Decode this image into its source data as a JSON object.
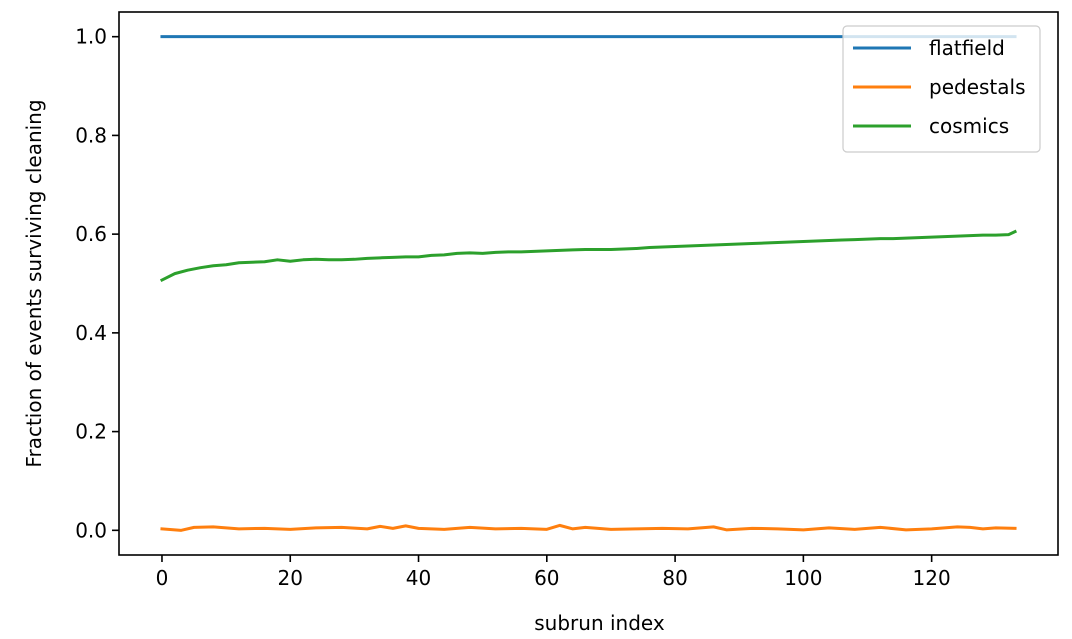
{
  "chart_data": {
    "type": "line",
    "title": "",
    "xlabel": "subrun index",
    "ylabel": "Fraction of events surviving cleaning",
    "xlim": [
      -6.7,
      139.7
    ],
    "ylim": [
      -0.05,
      1.05
    ],
    "xticks": [
      0,
      20,
      40,
      60,
      80,
      100,
      120
    ],
    "yticks": [
      0.0,
      0.2,
      0.4,
      0.6,
      0.8,
      1.0
    ],
    "xtick_labels": [
      "0",
      "20",
      "40",
      "60",
      "80",
      "100",
      "120"
    ],
    "ytick_labels": [
      "0.0",
      "0.2",
      "0.4",
      "0.6",
      "0.8",
      "1.0"
    ],
    "grid": false,
    "legend_position": "top-right",
    "x_range": [
      0,
      133
    ],
    "series": [
      {
        "name": "flatfield",
        "color": "#1f77b4",
        "x": [
          0,
          133
        ],
        "y": [
          1.0,
          1.0
        ]
      },
      {
        "name": "pedestals",
        "color": "#ff7f0e",
        "x": [
          0,
          3,
          5,
          8,
          12,
          16,
          20,
          24,
          28,
          32,
          34,
          36,
          38,
          40,
          44,
          48,
          52,
          56,
          60,
          62,
          64,
          66,
          70,
          74,
          78,
          82,
          86,
          88,
          92,
          96,
          100,
          104,
          108,
          112,
          116,
          120,
          124,
          126,
          128,
          130,
          133
        ],
        "y": [
          0.003,
          0.0,
          0.006,
          0.007,
          0.003,
          0.004,
          0.002,
          0.005,
          0.006,
          0.003,
          0.008,
          0.004,
          0.009,
          0.004,
          0.002,
          0.006,
          0.003,
          0.004,
          0.002,
          0.01,
          0.003,
          0.006,
          0.002,
          0.003,
          0.004,
          0.003,
          0.007,
          0.001,
          0.004,
          0.003,
          0.001,
          0.005,
          0.002,
          0.006,
          0.001,
          0.003,
          0.007,
          0.006,
          0.003,
          0.005,
          0.004
        ]
      },
      {
        "name": "cosmics",
        "color": "#2ca02c",
        "x": [
          0,
          2,
          4,
          6,
          8,
          10,
          12,
          14,
          16,
          18,
          20,
          22,
          24,
          26,
          28,
          30,
          32,
          34,
          36,
          38,
          40,
          42,
          44,
          46,
          48,
          50,
          52,
          54,
          56,
          58,
          60,
          62,
          64,
          66,
          68,
          70,
          72,
          74,
          76,
          78,
          80,
          82,
          84,
          86,
          88,
          90,
          92,
          94,
          96,
          98,
          100,
          102,
          104,
          106,
          108,
          110,
          112,
          114,
          116,
          118,
          120,
          122,
          124,
          126,
          128,
          130,
          132,
          133
        ],
        "y": [
          0.507,
          0.52,
          0.527,
          0.532,
          0.536,
          0.538,
          0.542,
          0.543,
          0.544,
          0.548,
          0.545,
          0.548,
          0.549,
          0.548,
          0.548,
          0.549,
          0.551,
          0.552,
          0.553,
          0.554,
          0.554,
          0.557,
          0.558,
          0.561,
          0.562,
          0.561,
          0.563,
          0.564,
          0.564,
          0.565,
          0.566,
          0.567,
          0.568,
          0.569,
          0.569,
          0.569,
          0.57,
          0.571,
          0.573,
          0.574,
          0.575,
          0.576,
          0.577,
          0.578,
          0.579,
          0.58,
          0.581,
          0.582,
          0.583,
          0.584,
          0.585,
          0.586,
          0.587,
          0.588,
          0.589,
          0.59,
          0.591,
          0.591,
          0.592,
          0.593,
          0.594,
          0.595,
          0.596,
          0.597,
          0.598,
          0.598,
          0.599,
          0.605
        ]
      }
    ]
  }
}
